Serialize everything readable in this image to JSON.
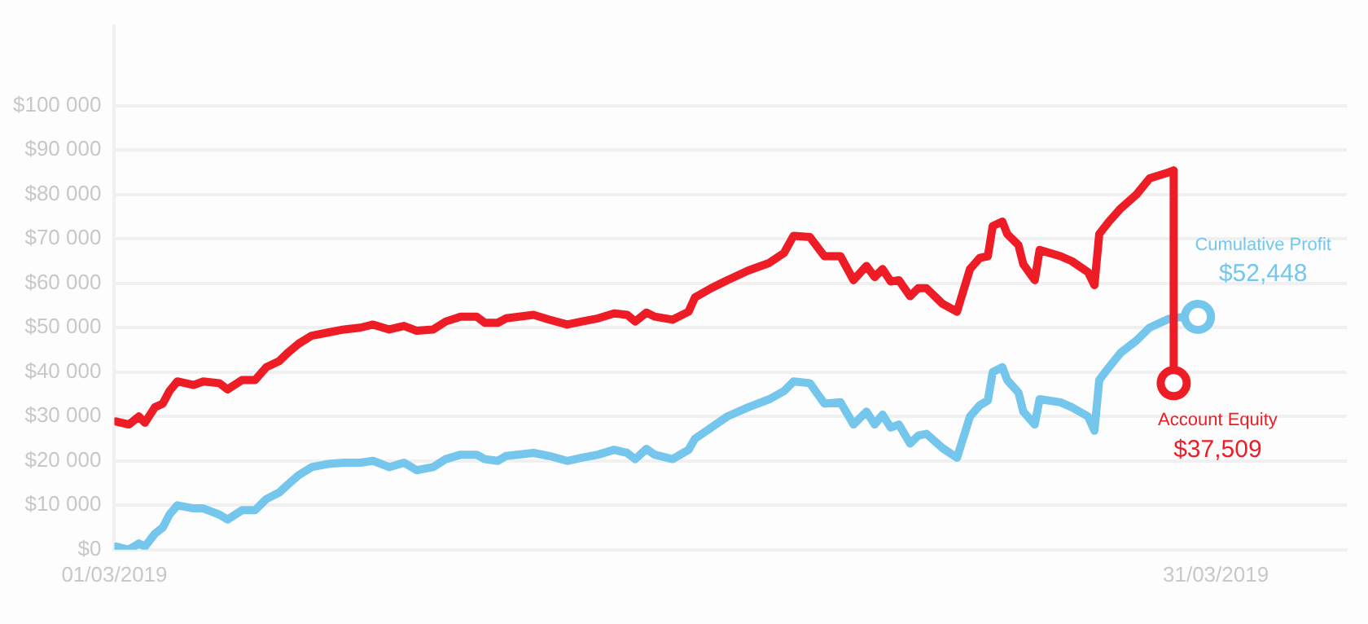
{
  "chart_data": {
    "type": "line",
    "x": [
      "2019-03-01T01:00",
      "2019-03-01T09:30",
      "2019-03-01T16:00",
      "2019-03-01T20:00",
      "2019-03-02T02:30",
      "2019-03-02T07:40",
      "2019-03-02T12:00",
      "2019-03-02T17:10",
      "2019-03-03T03:50",
      "2019-03-03T10:10",
      "2019-03-03T20:40",
      "2019-03-04T02:00",
      "2019-03-04T11:30",
      "2019-03-04T20:00",
      "2019-03-05T03:20",
      "2019-03-05T11:50",
      "2019-03-05T17:10",
      "2019-03-06T00:30",
      "2019-03-06T09:00",
      "2019-03-06T19:30",
      "2019-03-07T06:10",
      "2019-03-07T16:40",
      "2019-03-08T01:10",
      "2019-03-08T11:40",
      "2019-03-08T21:20",
      "2019-03-09T05:40",
      "2019-03-09T16:20",
      "2019-03-10T00:40",
      "2019-03-10T10:20",
      "2019-03-10T20:50",
      "2019-03-11T02:10",
      "2019-03-11T10:40",
      "2019-03-11T16:00",
      "2019-03-12T10:00",
      "2019-03-12T20:30",
      "2019-03-13T08:00",
      "2019-03-13T17:40",
      "2019-03-14T04:10",
      "2019-03-14T14:40",
      "2019-03-14T23:10",
      "2019-03-15T04:30",
      "2019-03-15T11:50",
      "2019-03-15T17:10",
      "2019-03-16T04:50",
      "2019-03-16T15:20",
      "2019-03-16T19:30",
      "2019-03-17T06:10",
      "2019-03-17T16:40",
      "2019-03-18T06:30",
      "2019-03-18T20:10",
      "2019-03-19T05:40",
      "2019-03-19T12:00",
      "2019-03-19T22:40",
      "2019-03-20T08:10",
      "2019-03-20T18:40",
      "2019-03-21T03:10",
      "2019-03-21T11:40",
      "2019-03-21T17:00",
      "2019-03-21T22:10",
      "2019-03-22T03:30",
      "2019-03-22T08:50",
      "2019-03-22T16:10",
      "2019-03-22T21:30",
      "2019-03-23T02:50",
      "2019-03-23T13:20",
      "2019-03-23T22:50",
      "2019-03-24T07:20",
      "2019-03-24T13:40",
      "2019-03-24T19:00",
      "2019-03-24T22:10",
      "2019-03-25T04:30",
      "2019-03-25T07:40",
      "2019-03-25T15:00",
      "2019-03-25T18:10",
      "2019-03-26T01:40",
      "2019-03-26T04:50",
      "2019-03-26T18:30",
      "2019-03-27T01:50",
      "2019-03-27T12:30",
      "2019-03-27T16:40",
      "2019-03-27T19:50",
      "2019-03-28T02:10",
      "2019-03-28T09:40",
      "2019-03-28T20:10",
      "2019-03-29T04:40",
      "2019-03-29T17:20",
      "2019-03-29T20:30",
      "2019-03-29T20:30",
      "2019-03-30T12:20"
    ],
    "series": [
      {
        "name": "Account Equity",
        "color": "#ee1c25",
        "values": [
          28900,
          28200,
          30000,
          28600,
          32100,
          32900,
          35700,
          37900,
          37100,
          37900,
          37500,
          36100,
          38200,
          38200,
          41100,
          42500,
          44300,
          46400,
          48200,
          48900,
          49600,
          50000,
          50700,
          49600,
          50400,
          49300,
          49600,
          51400,
          52500,
          52500,
          51100,
          51100,
          52100,
          52900,
          51800,
          50700,
          51400,
          52100,
          53200,
          52900,
          51400,
          53400,
          52500,
          51800,
          53600,
          56800,
          58900,
          60700,
          62900,
          64600,
          66800,
          70700,
          70400,
          66100,
          66100,
          60700,
          63900,
          61400,
          63200,
          60400,
          60700,
          57100,
          58900,
          58900,
          55400,
          53600,
          63200,
          65700,
          66100,
          72900,
          73900,
          71100,
          68600,
          64300,
          60700,
          67500,
          66100,
          65000,
          62500,
          59600,
          71100,
          73900,
          76800,
          80000,
          83600,
          85000,
          85400,
          37509,
          null
        ],
        "value_labels": [
          null,
          null,
          null,
          null,
          null,
          null,
          null,
          null,
          null,
          null,
          null,
          null,
          null,
          null,
          null,
          null,
          null,
          null,
          null,
          null,
          null,
          null,
          null,
          null,
          null,
          null,
          null,
          null,
          null,
          null,
          null,
          null,
          null,
          null,
          null,
          null,
          null,
          null,
          null,
          null,
          null,
          null,
          null,
          null,
          null,
          null,
          null,
          null,
          null,
          null,
          null,
          null,
          null,
          null,
          null,
          null,
          null,
          null,
          null,
          null,
          null,
          null,
          null,
          null,
          null,
          null,
          null,
          null,
          null,
          null,
          null,
          null,
          null,
          null,
          null,
          null,
          null,
          null,
          null,
          null,
          null,
          null,
          null,
          null,
          null,
          null,
          null,
          "$37,509",
          null
        ]
      },
      {
        "name": "Cumulative Profit",
        "color": "#74c6ec",
        "values": [
          700,
          0,
          1400,
          700,
          3600,
          5000,
          7900,
          10000,
          9300,
          9300,
          7900,
          6800,
          8900,
          8900,
          11400,
          12900,
          14600,
          16800,
          18600,
          19300,
          19600,
          19600,
          20000,
          18600,
          19600,
          17900,
          18600,
          20400,
          21400,
          21400,
          20400,
          20000,
          21100,
          21800,
          21100,
          20000,
          20700,
          21400,
          22500,
          21800,
          20400,
          22700,
          21400,
          20400,
          22500,
          25000,
          27500,
          30000,
          32100,
          33900,
          35700,
          37900,
          37500,
          32900,
          33200,
          28200,
          31100,
          28200,
          30400,
          27500,
          28200,
          23900,
          25700,
          26100,
          22900,
          20700,
          30000,
          32500,
          33600,
          40000,
          41100,
          38200,
          35400,
          31100,
          28200,
          33900,
          33200,
          32100,
          30000,
          26800,
          38200,
          41100,
          44300,
          47100,
          50000,
          52000,
          52200,
          52300,
          52448
        ],
        "value_labels": [
          null,
          null,
          null,
          null,
          null,
          null,
          null,
          null,
          null,
          null,
          null,
          null,
          null,
          null,
          null,
          null,
          null,
          null,
          null,
          null,
          null,
          null,
          null,
          null,
          null,
          null,
          null,
          null,
          null,
          null,
          null,
          null,
          null,
          null,
          null,
          null,
          null,
          null,
          null,
          null,
          null,
          null,
          null,
          null,
          null,
          null,
          null,
          null,
          null,
          null,
          null,
          null,
          null,
          null,
          null,
          null,
          null,
          null,
          null,
          null,
          null,
          null,
          null,
          null,
          null,
          null,
          null,
          null,
          null,
          null,
          null,
          null,
          null,
          null,
          null,
          null,
          null,
          null,
          null,
          null,
          null,
          null,
          null,
          null,
          null,
          null,
          null,
          null,
          "$52,448"
        ]
      }
    ],
    "xlim": [
      "2019-03-01T00:00",
      "2019-04-03T13:40"
    ],
    "xticks": [
      {
        "value": "2019-03-01",
        "label": "01/03/2019"
      },
      {
        "value": "2019-03-31",
        "label": "31/03/2019"
      }
    ],
    "ylim": [
      0,
      118000
    ],
    "yticks": [
      {
        "value": 0,
        "label": "$0"
      },
      {
        "value": 10000,
        "label": "$10 000"
      },
      {
        "value": 20000,
        "label": "$20 000"
      },
      {
        "value": 30000,
        "label": "$30 000"
      },
      {
        "value": 40000,
        "label": "$40 000"
      },
      {
        "value": 50000,
        "label": "$50 000"
      },
      {
        "value": 60000,
        "label": "$60 000"
      },
      {
        "value": 70000,
        "label": "$70 000"
      },
      {
        "value": 80000,
        "label": "$80 000"
      },
      {
        "value": 90000,
        "label": "$90 000"
      },
      {
        "value": 100000,
        "label": "$100 000"
      }
    ],
    "grid": "y",
    "legend": false
  }
}
